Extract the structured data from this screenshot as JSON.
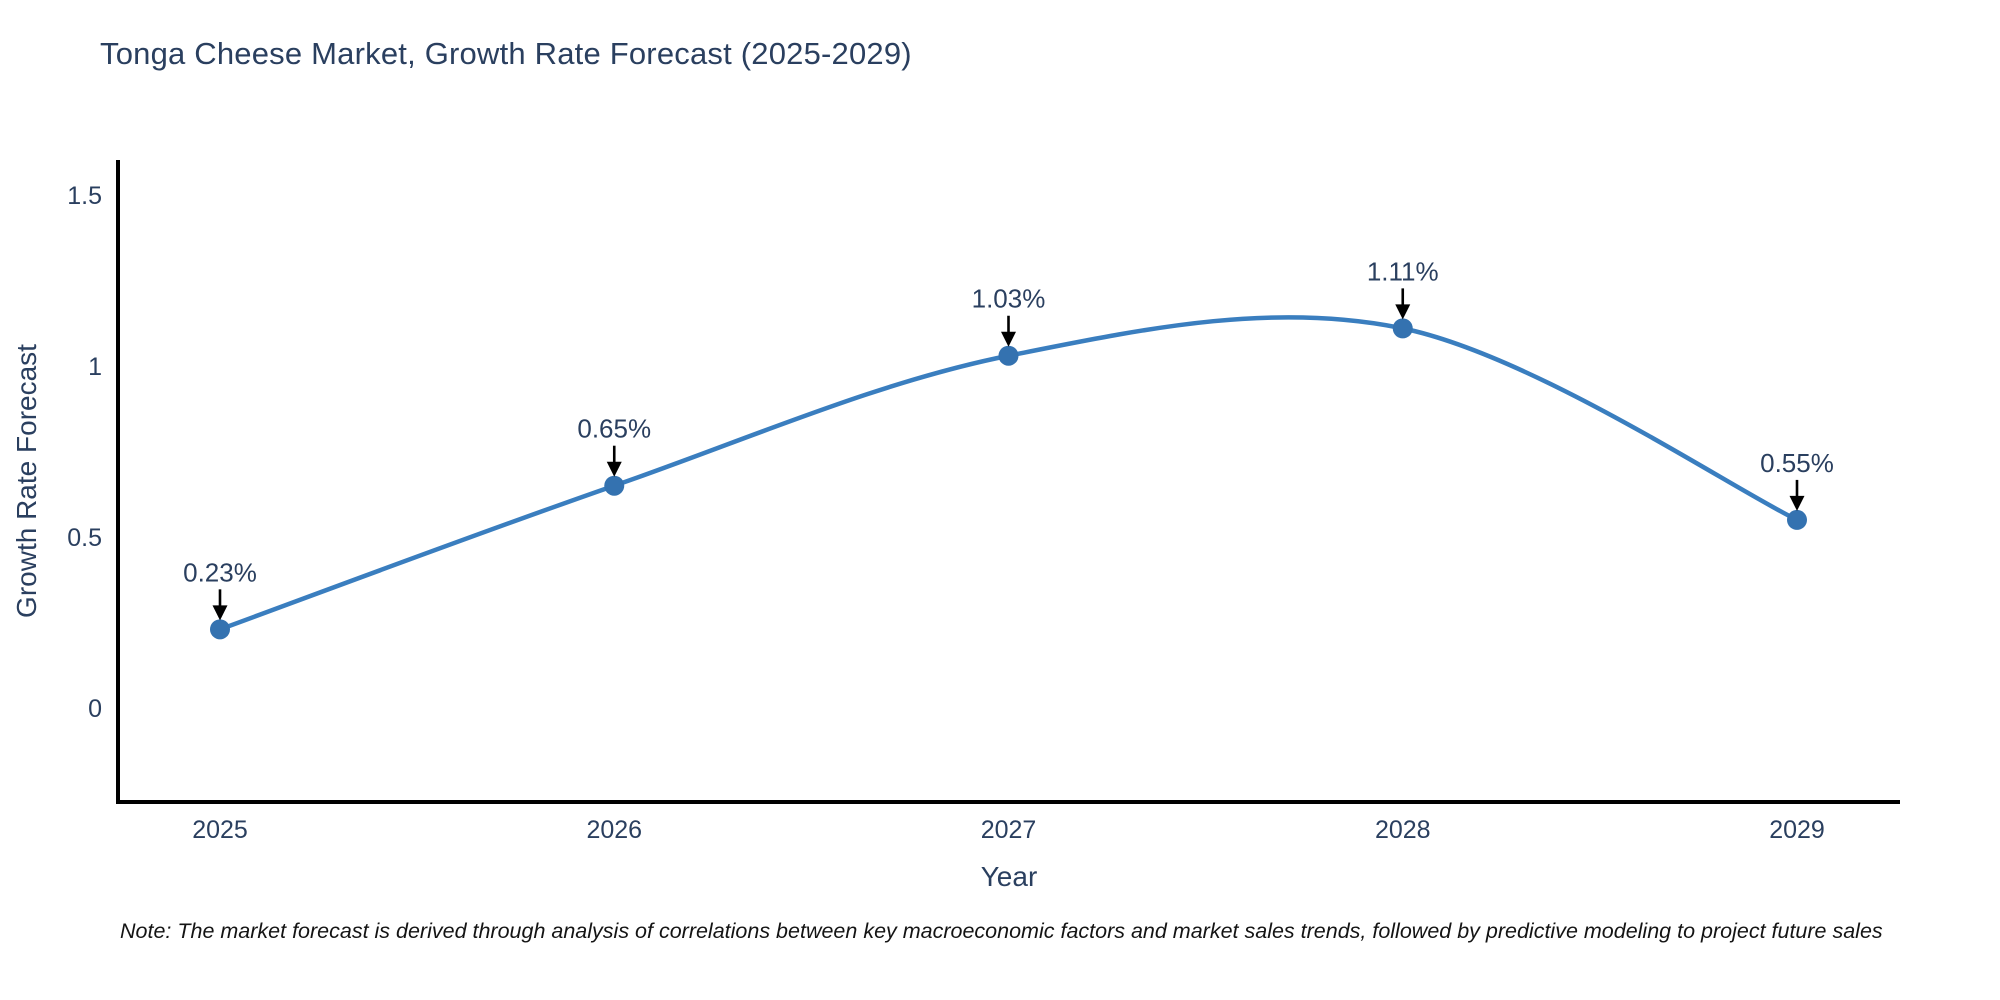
{
  "title": "Tonga Cheese Market, Growth Rate Forecast (2025-2029)",
  "note": "Note: The market forecast is derived through analysis of correlations between key macroeconomic factors and market sales trends, followed by predictive modeling to project future sales",
  "chart_data": {
    "type": "line",
    "line_shape": "spline",
    "title": "Tonga Cheese Market, Growth Rate Forecast (2025-2029)",
    "xlabel": "Year",
    "ylabel": "Growth Rate Forecast",
    "x": [
      2025,
      2026,
      2027,
      2028,
      2029
    ],
    "values": [
      0.23,
      0.65,
      1.03,
      1.11,
      0.55
    ],
    "point_labels": [
      "0.23%",
      "0.65%",
      "1.03%",
      "1.11%",
      "0.55%"
    ],
    "x_ticks": [
      "2025",
      "2026",
      "2027",
      "2028",
      "2029"
    ],
    "y_ticks": [
      {
        "value": 0,
        "label": "0"
      },
      {
        "value": 0.5,
        "label": "0.5"
      },
      {
        "value": 1,
        "label": "1"
      },
      {
        "value": 1.5,
        "label": "1.5"
      }
    ],
    "ylim": [
      -0.28,
      1.6
    ],
    "grid": false,
    "legend": false,
    "colors": {
      "line": "#3a7ebf",
      "marker": "#3472b0",
      "axis": "#000000",
      "text": "#2a3f5f",
      "annotation_arrow": "#000000",
      "annotation_text": "#2a3f5f"
    }
  }
}
